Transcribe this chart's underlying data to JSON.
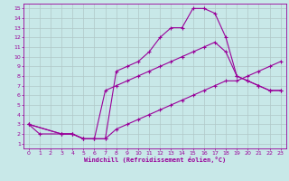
{
  "line1_x": [
    0,
    1,
    3,
    4,
    5,
    6,
    7,
    8,
    9,
    10,
    11,
    12,
    13,
    14,
    15,
    16,
    17,
    18,
    19,
    20,
    21,
    22,
    23
  ],
  "line1_y": [
    3,
    2,
    2,
    2,
    1.5,
    1.5,
    1.5,
    8.5,
    9,
    9.5,
    10.5,
    12,
    13,
    13,
    15,
    15,
    14.5,
    12,
    8,
    7.5,
    7,
    6.5,
    6.5
  ],
  "line2_x": [
    0,
    3,
    4,
    5,
    6,
    7,
    8,
    9,
    10,
    11,
    12,
    13,
    14,
    15,
    16,
    17,
    18,
    19,
    20,
    21,
    22,
    23
  ],
  "line2_y": [
    3,
    2,
    2,
    1.5,
    1.5,
    6.5,
    7,
    7.5,
    8,
    8.5,
    9,
    9.5,
    10,
    10.5,
    11,
    11.5,
    10.5,
    8,
    7.5,
    7,
    6.5,
    6.5
  ],
  "line3_x": [
    0,
    3,
    4,
    5,
    6,
    7,
    8,
    9,
    10,
    11,
    12,
    13,
    14,
    15,
    16,
    17,
    18,
    19,
    20,
    21,
    22,
    23
  ],
  "line3_y": [
    3,
    2,
    2,
    1.5,
    1.5,
    1.5,
    2.5,
    3,
    3.5,
    4,
    4.5,
    5,
    5.5,
    6,
    6.5,
    7,
    7.5,
    7.5,
    8,
    8.5,
    9,
    9.5
  ],
  "color": "#990099",
  "bg_color": "#c8e8e8",
  "grid_color": "#b0c8c8",
  "xlabel": "Windchill (Refroidissement éolien,°C)",
  "xlim": [
    -0.5,
    23.5
  ],
  "ylim": [
    0.5,
    15.5
  ],
  "xticks": [
    0,
    1,
    2,
    3,
    4,
    5,
    6,
    7,
    8,
    9,
    10,
    11,
    12,
    13,
    14,
    15,
    16,
    17,
    18,
    19,
    20,
    21,
    22,
    23
  ],
  "yticks": [
    1,
    2,
    3,
    4,
    5,
    6,
    7,
    8,
    9,
    10,
    11,
    12,
    13,
    14,
    15
  ],
  "marker": "+",
  "markersize": 3,
  "linewidth": 0.8,
  "tick_fontsize": 4.5,
  "xlabel_fontsize": 5
}
